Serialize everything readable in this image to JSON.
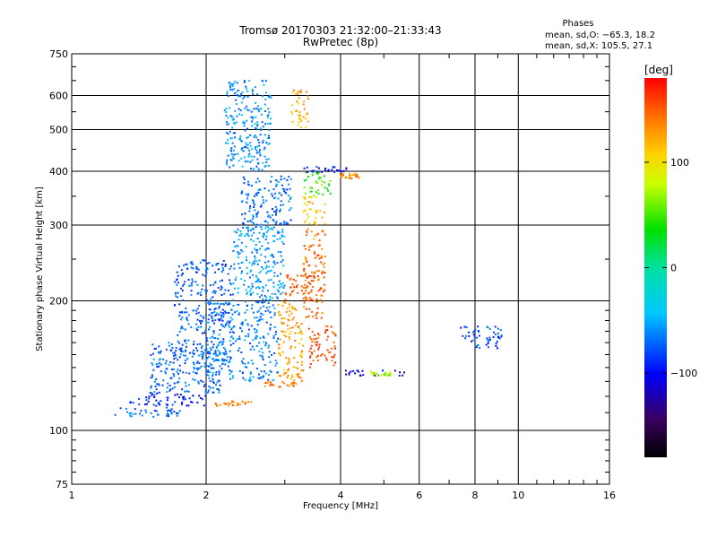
{
  "chart_data": {
    "type": "scatter",
    "title": "Tromsø 20170303 21:32:00–21:33:43",
    "subtitle": "RwPretec (8p)",
    "xlabel": "Frequency [MHz]",
    "ylabel": "Stationary phase Virtual Height [km]",
    "x_scale": "log",
    "y_scale": "log",
    "xlim": [
      1,
      16
    ],
    "ylim": [
      75,
      750
    ],
    "x_ticks": [
      "1",
      "2",
      "4",
      "6",
      "8",
      "10",
      "16"
    ],
    "y_ticks": [
      "75",
      "100",
      "200",
      "300",
      "400",
      "500",
      "600",
      "750"
    ],
    "grid": true,
    "phases": {
      "title": "Phases",
      "line1": "mean, sd,O: −65.3, 18.2",
      "line2": "mean, sd,X: 105.5, 27.1"
    },
    "colorbar": {
      "label": "[deg]",
      "range": [
        -180,
        180
      ],
      "ticks": [
        "100",
        "0",
        "−100"
      ]
    },
    "clusters": [
      {
        "x": [
          1.25,
          1.75
        ],
        "y": [
          107,
          113
        ],
        "phase": -70
      },
      {
        "x": [
          1.35,
          2.0
        ],
        "y": [
          114,
          122
        ],
        "phase": -95
      },
      {
        "x": [
          1.5,
          2.2
        ],
        "y": [
          122,
          160
        ],
        "phase": -70
      },
      {
        "x": [
          1.7,
          2.3
        ],
        "y": [
          150,
          250
        ],
        "phase": -75
      },
      {
        "x": [
          2.0,
          2.9
        ],
        "y": [
          130,
          200
        ],
        "phase": -65
      },
      {
        "x": [
          2.3,
          3.0
        ],
        "y": [
          200,
          300
        ],
        "phase": -55
      },
      {
        "x": [
          2.2,
          2.8
        ],
        "y": [
          400,
          650
        ],
        "phase": -60
      },
      {
        "x": [
          2.4,
          3.1
        ],
        "y": [
          300,
          390
        ],
        "phase": -70
      },
      {
        "x": [
          2.1,
          2.6
        ],
        "y": [
          114,
          117
        ],
        "phase": 140
      },
      {
        "x": [
          2.7,
          3.2
        ],
        "y": [
          126,
          130
        ],
        "phase": 145
      },
      {
        "x": [
          2.9,
          3.3
        ],
        "y": [
          130,
          200
        ],
        "phase": 125
      },
      {
        "x": [
          3.0,
          3.5
        ],
        "y": [
          200,
          230
        ],
        "phase": 150
      },
      {
        "x": [
          3.3,
          3.7
        ],
        "y": [
          180,
          300
        ],
        "phase": 145
      },
      {
        "x": [
          3.4,
          3.9
        ],
        "y": [
          140,
          175
        ],
        "phase": 155
      },
      {
        "x": [
          3.3,
          3.7
        ],
        "y": [
          300,
          350
        ],
        "phase": 110
      },
      {
        "x": [
          3.3,
          3.8
        ],
        "y": [
          350,
          400
        ],
        "phase": 50
      },
      {
        "x": [
          3.1,
          3.4
        ],
        "y": [
          500,
          620
        ],
        "phase": 120
      },
      {
        "x": [
          3.3,
          4.2
        ],
        "y": [
          395,
          410
        ],
        "phase": -100
      },
      {
        "x": [
          4.0,
          4.4
        ],
        "y": [
          385,
          395
        ],
        "phase": 135
      },
      {
        "x": [
          4.1,
          5.6
        ],
        "y": [
          134,
          138
        ],
        "phase": -110
      },
      {
        "x": [
          4.6,
          5.2
        ],
        "y": [
          134,
          137
        ],
        "phase": 75
      },
      {
        "x": [
          7.4,
          9.2
        ],
        "y": [
          155,
          175
        ],
        "phase": -80
      }
    ]
  }
}
